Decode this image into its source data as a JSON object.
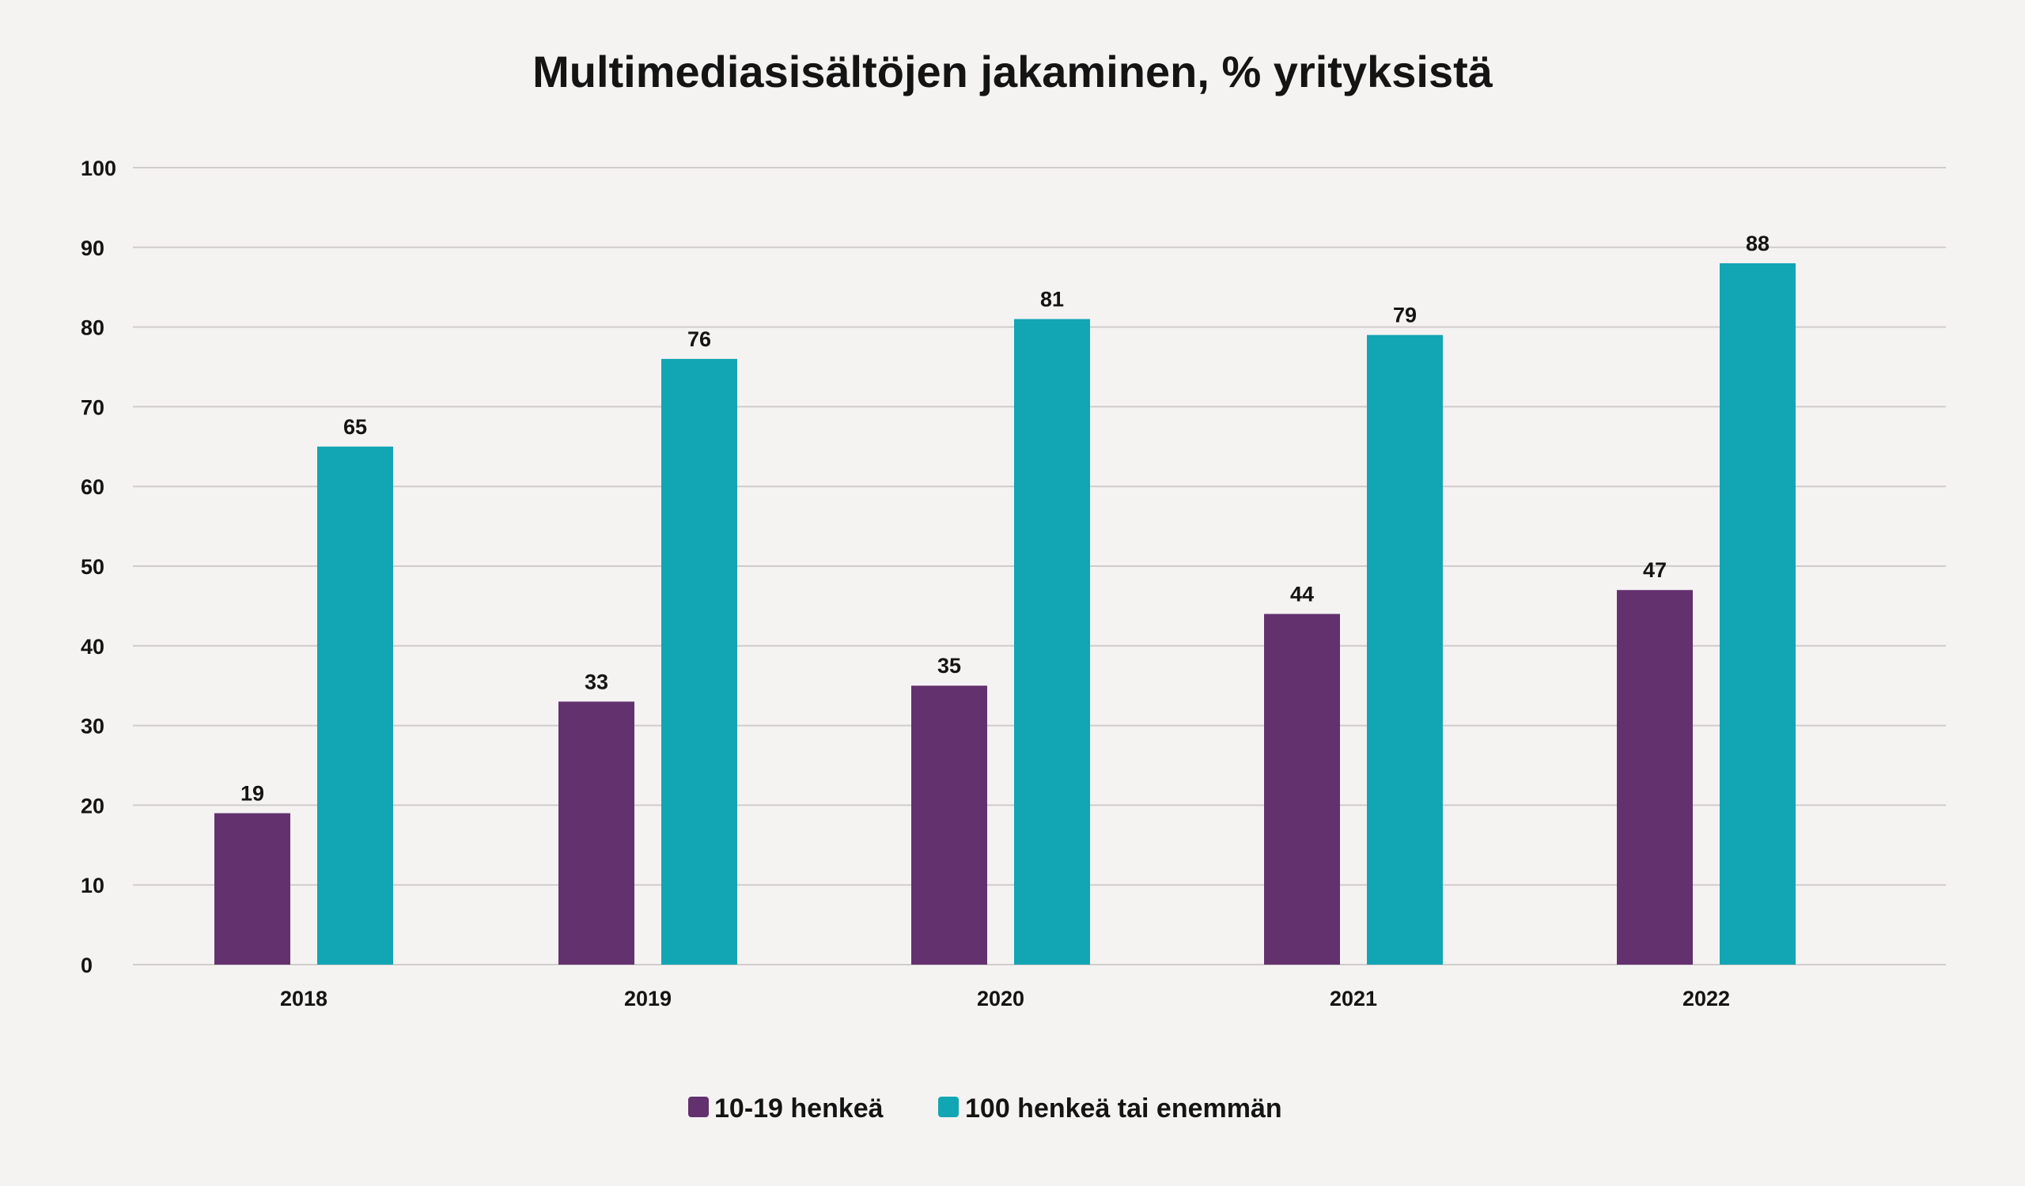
{
  "chart_data": {
    "type": "bar",
    "title": "Multimediasisältöjen jakaminen, % yrityksistä",
    "xlabel": "",
    "ylabel": "",
    "categories": [
      "2018",
      "2019",
      "2020",
      "2021",
      "2022"
    ],
    "series": [
      {
        "name": "10-19 henkeä",
        "values": [
          19,
          33,
          35,
          44,
          47
        ],
        "color": "#62316e"
      },
      {
        "name": "100 henkeä tai enemmän",
        "values": [
          65,
          76,
          81,
          79,
          88
        ],
        "color": "#12a5b3"
      }
    ],
    "ylim": [
      0,
      100
    ],
    "yticks": [
      "0",
      "10",
      "20",
      "30",
      "40",
      "50",
      "60",
      "70",
      "80",
      "90",
      "100"
    ],
    "grid": true,
    "legend_position": "bottom-center",
    "data_labels": true
  }
}
